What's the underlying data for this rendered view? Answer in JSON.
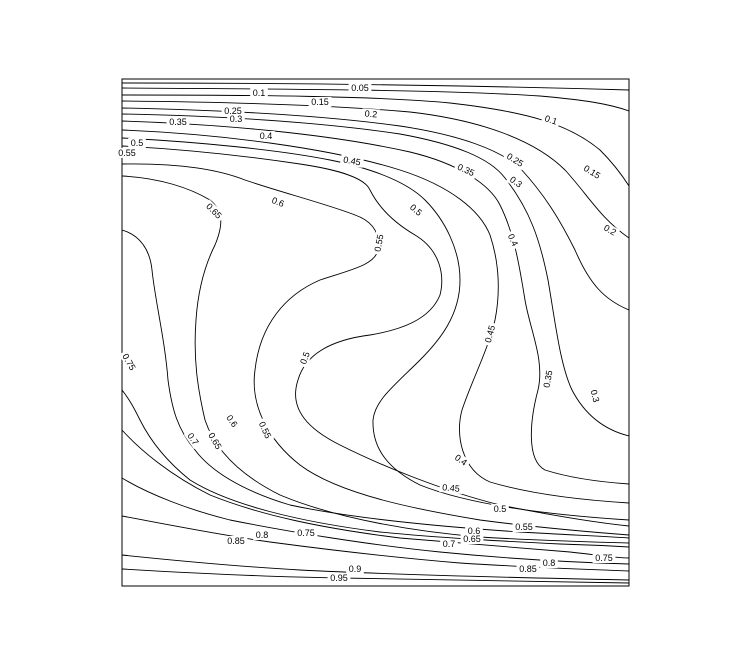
{
  "chart_data": {
    "type": "contour",
    "title": "",
    "xlabel": "",
    "ylabel": "",
    "axes_visible": false,
    "grid": false,
    "colors": {
      "line": "#000000",
      "background": "#ffffff"
    },
    "contours": [
      {
        "level": "0.05",
        "labels": [
          "0.05"
        ]
      },
      {
        "level": "0.1",
        "labels": [
          "0.1",
          "0.1"
        ]
      },
      {
        "level": "0.15",
        "labels": [
          "0.15",
          "0.15"
        ]
      },
      {
        "level": "0.2",
        "labels": [
          "0.2",
          "0.2"
        ]
      },
      {
        "level": "0.25",
        "labels": [
          "0.25",
          "0.25"
        ]
      },
      {
        "level": "0.3",
        "labels": [
          "0.3",
          "0.3",
          "0.3"
        ]
      },
      {
        "level": "0.35",
        "labels": [
          "0.35",
          "0.35",
          "0.35"
        ]
      },
      {
        "level": "0.4",
        "labels": [
          "0.4",
          "0.4",
          "0.4"
        ]
      },
      {
        "level": "0.45",
        "labels": [
          "0.45",
          "0.45",
          "0.45"
        ]
      },
      {
        "level": "0.5",
        "labels": [
          "0.5",
          "0.5",
          "0.5",
          "0.5"
        ]
      },
      {
        "level": "0.55",
        "labels": [
          "0.55",
          "0.55",
          "0.55",
          "0.55"
        ]
      },
      {
        "level": "0.6",
        "labels": [
          "0.6",
          "0.6",
          "0.6"
        ]
      },
      {
        "level": "0.65",
        "labels": [
          "0.65",
          "0.65",
          "0.65"
        ]
      },
      {
        "level": "0.7",
        "labels": [
          "0.7",
          "0.7"
        ]
      },
      {
        "level": "0.75",
        "labels": [
          "0.75",
          "0.75",
          "0.75"
        ]
      },
      {
        "level": "0.8",
        "labels": [
          "0.8",
          "0.8"
        ]
      },
      {
        "level": "0.85",
        "labels": [
          "0.85",
          "0.85"
        ]
      },
      {
        "level": "0.9",
        "labels": [
          "0.9"
        ]
      },
      {
        "level": "0.95",
        "labels": [
          "0.95"
        ]
      }
    ]
  }
}
